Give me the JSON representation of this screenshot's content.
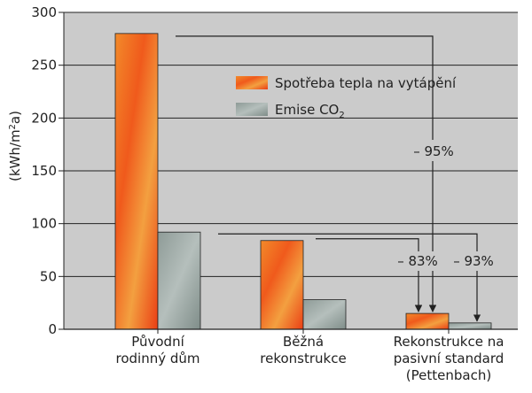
{
  "chart_data": {
    "type": "bar",
    "ylabel_parts": [
      "(kWh/m",
      "2",
      "a)"
    ],
    "ylim": [
      0,
      300
    ],
    "yticks": [
      "0",
      "50",
      "100",
      "150",
      "200",
      "250",
      "300"
    ],
    "grid": true,
    "legend_position": "top-right",
    "categories": [
      [
        "Původní",
        "rodinný dům"
      ],
      [
        "Běžná",
        "rekonstrukce"
      ],
      [
        "Rekonstrukce na",
        "pasivní standard",
        "(Pettenbach)"
      ]
    ],
    "series": [
      {
        "name": "Spotřeba tepla na vytápění",
        "values": [
          280,
          84,
          15
        ]
      },
      {
        "name_parts": [
          "Emise CO",
          "2"
        ],
        "values": [
          92,
          28,
          6
        ]
      }
    ],
    "annotations": [
      "– 95%",
      "– 83%",
      "– 93%"
    ],
    "colors": {
      "plot_bg": "#cbcbcb",
      "heat": "#ee4a1a",
      "co2": "#9aa5a1",
      "grid": "#222222"
    }
  }
}
